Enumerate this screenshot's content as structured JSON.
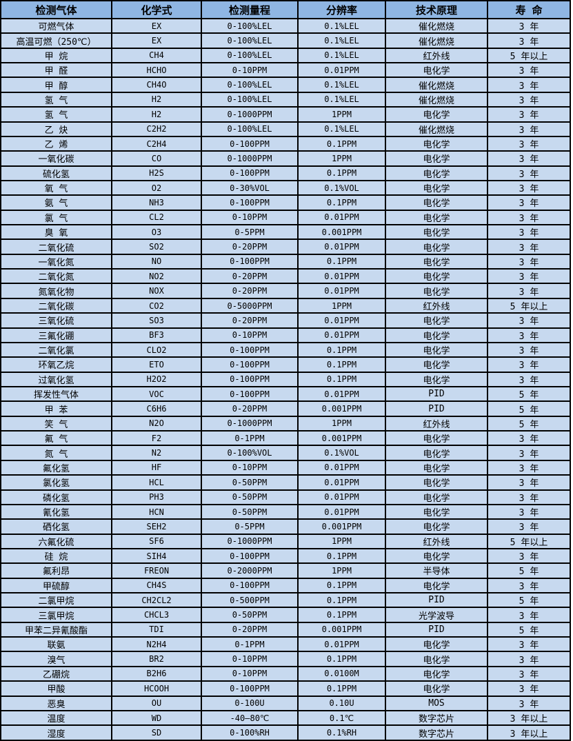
{
  "colors": {
    "header_bg": "#8fb6e3",
    "row_bg": "#c7d9ef",
    "border": "#000000",
    "text": "#000000"
  },
  "table": {
    "columns": [
      "检测气体",
      "化学式",
      "检测量程",
      "分辨率",
      "技术原理",
      "寿 命"
    ],
    "rows": [
      {
        "gas": "可燃气体",
        "formula": "EX",
        "range": "0-100%LEL",
        "resolution": "0.1%LEL",
        "principle": "催化燃烧",
        "lifespan": "3 年"
      },
      {
        "gas": "高温可燃（250℃）",
        "formula": "EX",
        "range": "0-100%LEL",
        "resolution": "0.1%LEL",
        "principle": "催化燃烧",
        "lifespan": "3 年"
      },
      {
        "gas": "甲 烷",
        "formula": "CH4",
        "range": "0-100%LEL",
        "resolution": "0.1%LEL",
        "principle": "红外线",
        "lifespan": "5 年以上"
      },
      {
        "gas": "甲 醛",
        "formula": "HCHO",
        "range": "0-10PPM",
        "resolution": "0.01PPM",
        "principle": "电化学",
        "lifespan": "3 年"
      },
      {
        "gas": "甲 醇",
        "formula": "CH4O",
        "range": "0-100%LEL",
        "resolution": "0.1%LEL",
        "principle": "催化燃烧",
        "lifespan": "3 年"
      },
      {
        "gas": "氢 气",
        "formula": "H2",
        "range": "0-100%LEL",
        "resolution": "0.1%LEL",
        "principle": "催化燃烧",
        "lifespan": "3 年"
      },
      {
        "gas": "氢 气",
        "formula": "H2",
        "range": "0-1000PPM",
        "resolution": "1PPM",
        "principle": "电化学",
        "lifespan": "3 年"
      },
      {
        "gas": "乙 炔",
        "formula": "C2H2",
        "range": "0-100%LEL",
        "resolution": "0.1%LEL",
        "principle": "催化燃烧",
        "lifespan": "3 年"
      },
      {
        "gas": "乙 烯",
        "formula": "C2H4",
        "range": "0-100PPM",
        "resolution": "0.1PPM",
        "principle": "电化学",
        "lifespan": "3 年"
      },
      {
        "gas": "一氧化碳",
        "formula": "CO",
        "range": "0-1000PPM",
        "resolution": "1PPM",
        "principle": "电化学",
        "lifespan": "3 年"
      },
      {
        "gas": "硫化氢",
        "formula": "H2S",
        "range": "0-100PPM",
        "resolution": "0.1PPM",
        "principle": "电化学",
        "lifespan": "3 年"
      },
      {
        "gas": "氧 气",
        "formula": "O2",
        "range": "0-30%VOL",
        "resolution": "0.1%VOL",
        "principle": "电化学",
        "lifespan": "3 年"
      },
      {
        "gas": "氨 气",
        "formula": "NH3",
        "range": "0-100PPM",
        "resolution": "0.1PPM",
        "principle": "电化学",
        "lifespan": "3 年"
      },
      {
        "gas": "氯 气",
        "formula": "CL2",
        "range": "0-10PPM",
        "resolution": "0.01PPM",
        "principle": "电化学",
        "lifespan": "3 年"
      },
      {
        "gas": "臭 氧",
        "formula": "O3",
        "range": "0-5PPM",
        "resolution": "0.001PPM",
        "principle": "电化学",
        "lifespan": "3 年"
      },
      {
        "gas": "二氧化硫",
        "formula": "SO2",
        "range": "0-20PPM",
        "resolution": "0.01PPM",
        "principle": "电化学",
        "lifespan": "3 年"
      },
      {
        "gas": "一氧化氮",
        "formula": "NO",
        "range": "0-100PPM",
        "resolution": "0.1PPM",
        "principle": "电化学",
        "lifespan": "3 年"
      },
      {
        "gas": "二氧化氮",
        "formula": "NO2",
        "range": "0-20PPM",
        "resolution": "0.01PPM",
        "principle": "电化学",
        "lifespan": "3 年"
      },
      {
        "gas": "氮氧化物",
        "formula": "NOX",
        "range": "0-20PPM",
        "resolution": "0.01PPM",
        "principle": "电化学",
        "lifespan": "3 年"
      },
      {
        "gas": "二氧化碳",
        "formula": "CO2",
        "range": "0-5000PPM",
        "resolution": "1PPM",
        "principle": "红外线",
        "lifespan": "5 年以上"
      },
      {
        "gas": "三氧化硫",
        "formula": "SO3",
        "range": "0-20PPM",
        "resolution": "0.01PPM",
        "principle": "电化学",
        "lifespan": "3 年"
      },
      {
        "gas": "三氟化硼",
        "formula": "BF3",
        "range": "0-10PPM",
        "resolution": "0.01PPM",
        "principle": "电化学",
        "lifespan": "3 年"
      },
      {
        "gas": "二氧化氯",
        "formula": "CLO2",
        "range": "0-100PPM",
        "resolution": "0.1PPM",
        "principle": "电化学",
        "lifespan": "3 年"
      },
      {
        "gas": "环氧乙烷",
        "formula": "ETO",
        "range": "0-100PPM",
        "resolution": "0.1PPM",
        "principle": "电化学",
        "lifespan": "3 年"
      },
      {
        "gas": "过氧化氢",
        "formula": "H2O2",
        "range": "0-100PPM",
        "resolution": "0.1PPM",
        "principle": "电化学",
        "lifespan": "3 年"
      },
      {
        "gas": "挥发性气体",
        "formula": "VOC",
        "range": "0-100PPM",
        "resolution": "0.01PPM",
        "principle": "PID",
        "lifespan": "5 年"
      },
      {
        "gas": "甲 苯",
        "formula": "C6H6",
        "range": "0-20PPM",
        "resolution": "0.001PPM",
        "principle": "PID",
        "lifespan": "5 年"
      },
      {
        "gas": "笑 气",
        "formula": "N2O",
        "range": "0-1000PPM",
        "resolution": "1PPM",
        "principle": "红外线",
        "lifespan": "5 年"
      },
      {
        "gas": "氟 气",
        "formula": "F2",
        "range": "0-1PPM",
        "resolution": "0.001PPM",
        "principle": "电化学",
        "lifespan": "3 年"
      },
      {
        "gas": "氮 气",
        "formula": "N2",
        "range": "0-100%VOL",
        "resolution": "0.1%VOL",
        "principle": "电化学",
        "lifespan": "3 年"
      },
      {
        "gas": "氟化氢",
        "formula": "HF",
        "range": "0-10PPM",
        "resolution": "0.01PPM",
        "principle": "电化学",
        "lifespan": "3 年"
      },
      {
        "gas": "氯化氢",
        "formula": "HCL",
        "range": "0-50PPM",
        "resolution": "0.01PPM",
        "principle": "电化学",
        "lifespan": "3 年"
      },
      {
        "gas": "磷化氢",
        "formula": "PH3",
        "range": "0-50PPM",
        "resolution": "0.01PPM",
        "principle": "电化学",
        "lifespan": "3 年"
      },
      {
        "gas": "氰化氢",
        "formula": "HCN",
        "range": "0-50PPM",
        "resolution": "0.01PPM",
        "principle": "电化学",
        "lifespan": "3 年"
      },
      {
        "gas": "硒化氢",
        "formula": "SEH2",
        "range": "0-5PPM",
        "resolution": "0.001PPM",
        "principle": "电化学",
        "lifespan": "3 年"
      },
      {
        "gas": "六氟化硫",
        "formula": "SF6",
        "range": "0-1000PPM",
        "resolution": "1PPM",
        "principle": "红外线",
        "lifespan": "5 年以上"
      },
      {
        "gas": "硅 烷",
        "formula": "SIH4",
        "range": "0-100PPM",
        "resolution": "0.1PPM",
        "principle": "电化学",
        "lifespan": "3 年"
      },
      {
        "gas": "氟利昂",
        "formula": "FREON",
        "range": "0-2000PPM",
        "resolution": "1PPM",
        "principle": "半导体",
        "lifespan": "5 年"
      },
      {
        "gas": "甲硫醇",
        "formula": "CH4S",
        "range": "0-100PPM",
        "resolution": "0.1PPM",
        "principle": "电化学",
        "lifespan": "3 年"
      },
      {
        "gas": "二氯甲烷",
        "formula": "CH2CL2",
        "range": "0-500PPM",
        "resolution": "0.1PPM",
        "principle": "PID",
        "lifespan": "5 年"
      },
      {
        "gas": "三氯甲烷",
        "formula": "CHCL3",
        "range": "0-50PPM",
        "resolution": "0.1PPM",
        "principle": "光学波导",
        "lifespan": "3 年"
      },
      {
        "gas": "甲苯二异氰酸酯",
        "formula": "TDI",
        "range": "0-20PPM",
        "resolution": "0.001PPM",
        "principle": "PID",
        "lifespan": "5 年"
      },
      {
        "gas": "联氨",
        "formula": "N2H4",
        "range": "0-1PPM",
        "resolution": "0.01PPM",
        "principle": "电化学",
        "lifespan": "3 年"
      },
      {
        "gas": "溴气",
        "formula": "BR2",
        "range": "0-10PPM",
        "resolution": "0.1PPM",
        "principle": "电化学",
        "lifespan": "3 年"
      },
      {
        "gas": "乙硼烷",
        "formula": "B2H6",
        "range": "0-10PPM",
        "resolution": "0.0100M",
        "principle": "电化学",
        "lifespan": "3 年"
      },
      {
        "gas": "甲酸",
        "formula": "HCOOH",
        "range": "0-100PPM",
        "resolution": "0.1PPM",
        "principle": "电化学",
        "lifespan": "3 年"
      },
      {
        "gas": "恶臭",
        "formula": "OU",
        "range": "0-100U",
        "resolution": "0.10U",
        "principle": "MOS",
        "lifespan": "3 年"
      },
      {
        "gas": "温度",
        "formula": "WD",
        "range": "-40—80℃",
        "resolution": "0.1℃",
        "principle": "数字芯片",
        "lifespan": "3 年以上"
      },
      {
        "gas": "湿度",
        "formula": "SD",
        "range": "0-100%RH",
        "resolution": "0.1%RH",
        "principle": "数字芯片",
        "lifespan": "3 年以上"
      }
    ]
  }
}
